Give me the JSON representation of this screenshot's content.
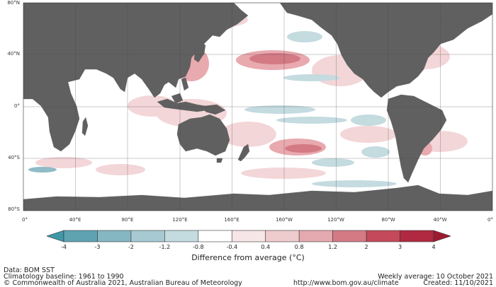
{
  "map": {
    "lat_labels": [
      "80°N",
      "40°N",
      "0°",
      "40°S",
      "80°S"
    ],
    "lon_labels": [
      "0°",
      "40°E",
      "80°E",
      "120°E",
      "160°E",
      "160°W",
      "120°W",
      "80°W",
      "40°W",
      "0°"
    ],
    "colors": {
      "land": "#606060",
      "ocean_neutral": "#ffffff",
      "grid": "#444444",
      "warm_light": "#f3d6d8",
      "warm_mid": "#e8a9af",
      "warm_strong": "#d37a85",
      "warm_intense": "#c4495a",
      "cool_light": "#c4dbe0",
      "cool_mid": "#8fbcc6",
      "cool_strong": "#5fa3b2"
    }
  },
  "legend": {
    "ticks": [
      "-4",
      "-3",
      "-2",
      "-1.2",
      "-0.8",
      "-0.4",
      "0.4",
      "0.8",
      "1.2",
      "2",
      "3",
      "4"
    ],
    "colors": [
      "#3f98a8",
      "#5fa3b2",
      "#85b7c2",
      "#a7c9d1",
      "#c4dbe0",
      "#ffffff",
      "#f7e6e7",
      "#eecbcd",
      "#e4a9ae",
      "#d37a85",
      "#c4495a",
      "#b02940",
      "#9c1a30"
    ],
    "title": "Difference from average (°C)"
  },
  "footer": {
    "data_source": "Data: BOM SST",
    "baseline": "Climatology baseline: 1961 to 1990",
    "copyright": "© Commonwealth of Australia 2021, Australian Bureau of Meteorology",
    "weekly": "Weekly average: 10 October 2021",
    "url": "http://www.bom.gov.au/climate",
    "created": "Created: 11/10/2021"
  }
}
